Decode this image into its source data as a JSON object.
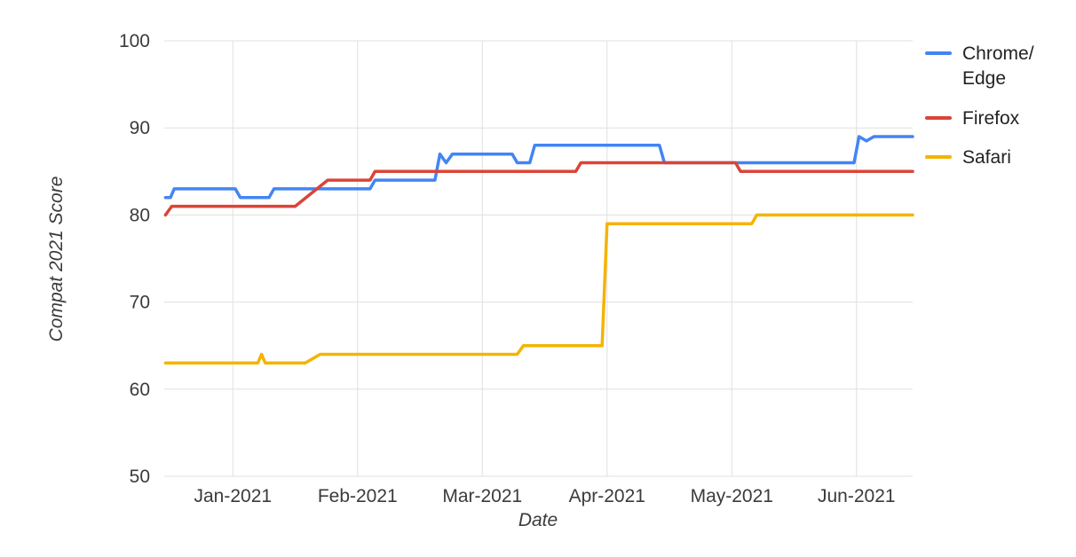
{
  "chart_data": {
    "type": "line",
    "title": "",
    "xlabel": "Date",
    "ylabel": "Compat 2021 Score",
    "xlim": [
      -0.55,
      5.45
    ],
    "ylim": [
      50,
      100
    ],
    "x_unit": "months since Jan-2021",
    "grid": true,
    "grid_color": "#e0e0e0",
    "axis_text_color": "#3b3b3b",
    "x_ticks": [
      {
        "value": 0,
        "label": "Jan-2021"
      },
      {
        "value": 1,
        "label": "Feb-2021"
      },
      {
        "value": 2,
        "label": "Mar-2021"
      },
      {
        "value": 3,
        "label": "Apr-2021"
      },
      {
        "value": 4,
        "label": "May-2021"
      },
      {
        "value": 5,
        "label": "Jun-2021"
      }
    ],
    "y_ticks": [
      50,
      60,
      70,
      80,
      90,
      100
    ],
    "legend": {
      "position": "top-right",
      "items": [
        "Chrome/\nEdge",
        "Firefox",
        "Safari"
      ]
    },
    "series": [
      {
        "name": "Chrome/Edge",
        "color": "#4285F4",
        "points": [
          [
            -0.54,
            82
          ],
          [
            -0.5,
            82
          ],
          [
            -0.47,
            83
          ],
          [
            0.02,
            83
          ],
          [
            0.06,
            82
          ],
          [
            0.29,
            82
          ],
          [
            0.33,
            83
          ],
          [
            1.1,
            83
          ],
          [
            1.14,
            84
          ],
          [
            1.62,
            84
          ],
          [
            1.66,
            87
          ],
          [
            1.71,
            86
          ],
          [
            1.76,
            87
          ],
          [
            2.24,
            87
          ],
          [
            2.28,
            86
          ],
          [
            2.38,
            86
          ],
          [
            2.42,
            88
          ],
          [
            3.42,
            88
          ],
          [
            3.46,
            86
          ],
          [
            4.98,
            86
          ],
          [
            5.02,
            89
          ],
          [
            5.08,
            88.5
          ],
          [
            5.14,
            89
          ],
          [
            5.45,
            89
          ]
        ]
      },
      {
        "name": "Firefox",
        "color": "#DB4437",
        "points": [
          [
            -0.54,
            80
          ],
          [
            -0.49,
            81
          ],
          [
            0.5,
            81
          ],
          [
            0.76,
            84
          ],
          [
            1.1,
            84
          ],
          [
            1.14,
            85
          ],
          [
            2.75,
            85
          ],
          [
            2.79,
            86
          ],
          [
            4.03,
            86
          ],
          [
            4.07,
            85
          ],
          [
            5.45,
            85
          ]
        ]
      },
      {
        "name": "Safari",
        "color": "#F4B400",
        "points": [
          [
            -0.54,
            63
          ],
          [
            0.2,
            63
          ],
          [
            0.23,
            64
          ],
          [
            0.26,
            63
          ],
          [
            0.58,
            63
          ],
          [
            0.7,
            64
          ],
          [
            2.28,
            64
          ],
          [
            2.33,
            65
          ],
          [
            2.96,
            65
          ],
          [
            3.0,
            79
          ],
          [
            4.16,
            79
          ],
          [
            4.2,
            80
          ],
          [
            5.45,
            80
          ]
        ]
      }
    ]
  }
}
